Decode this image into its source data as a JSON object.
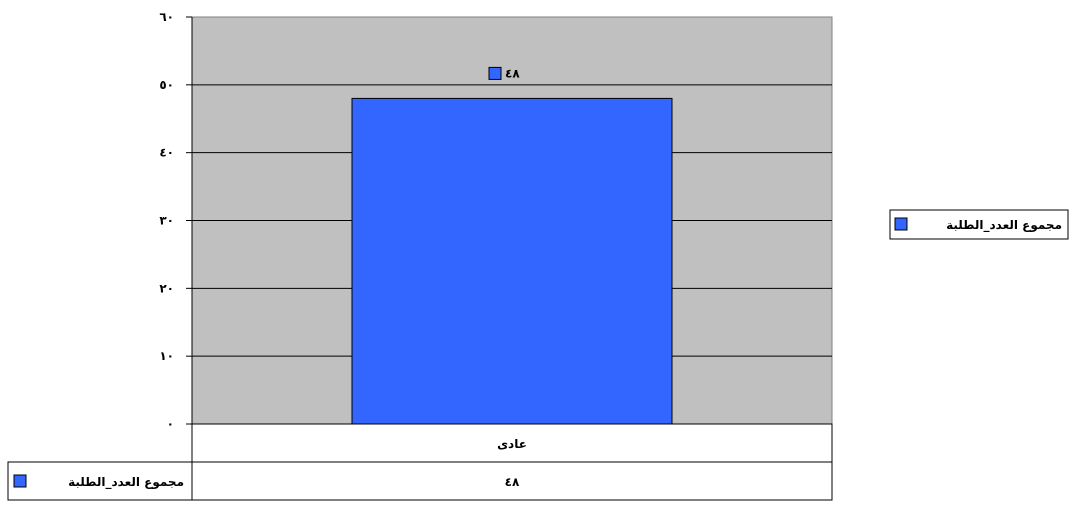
{
  "chart_data": {
    "type": "bar",
    "categories": [
      "عادى"
    ],
    "series": [
      {
        "name": "مجموع العدد_الطلبة",
        "values": [
          48
        ],
        "value_labels": [
          "٤٨"
        ]
      }
    ],
    "title": "",
    "xlabel": "",
    "ylabel": "",
    "ylim": [
      0,
      60
    ],
    "yticks": [
      0,
      10,
      20,
      30,
      40,
      50,
      60
    ],
    "ytick_labels": [
      "٠",
      "١٠",
      "٢٠",
      "٣٠",
      "٤٠",
      "٥٠",
      "٦٠"
    ],
    "grid": true,
    "legend": "right",
    "data_table": true,
    "colors": {
      "bar": "#3366FF",
      "plot_background": "#C0C0C0",
      "gridline": "#000000"
    }
  }
}
